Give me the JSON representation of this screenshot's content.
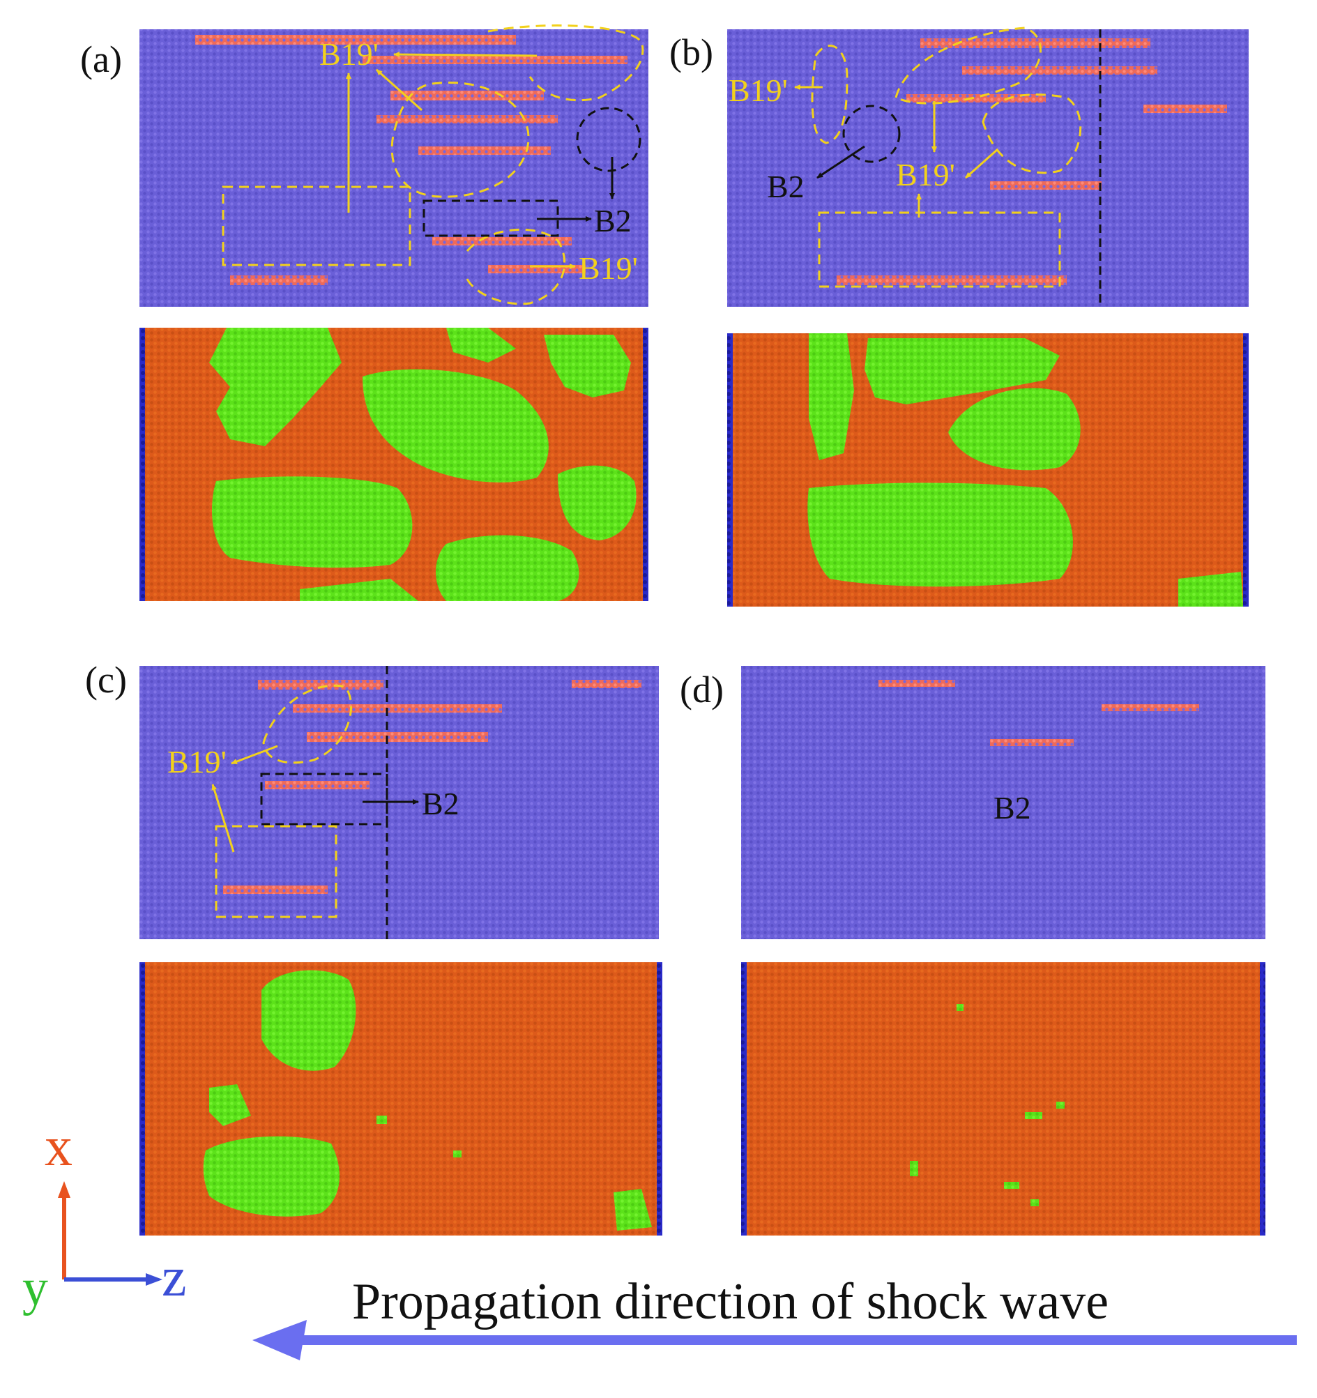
{
  "panels": [
    {
      "label": "(a)",
      "top_tags": [
        {
          "text": "B19'",
          "color": "yellow"
        },
        {
          "text": "B2",
          "color": "black"
        },
        {
          "text": "B19'",
          "color": "yellow"
        }
      ]
    },
    {
      "label": "(b)",
      "top_tags": [
        {
          "text": "B19'",
          "color": "yellow"
        },
        {
          "text": "B2",
          "color": "black"
        },
        {
          "text": "B19'",
          "color": "yellow"
        }
      ]
    },
    {
      "label": "(c)",
      "top_tags": [
        {
          "text": "B19'",
          "color": "yellow"
        },
        {
          "text": "B2",
          "color": "black"
        }
      ]
    },
    {
      "label": "(d)",
      "top_tags": [
        {
          "text": "B2",
          "color": "black"
        }
      ]
    }
  ],
  "axes": {
    "x": "x",
    "y": "y",
    "z": "z"
  },
  "caption": "Propagation direction of shock wave",
  "colors": {
    "atom_blue": "#6a5fd8",
    "atom_red": "#ee6a5a",
    "phase_orange": "#dd5a1a",
    "phase_green": "#5ce21a",
    "edge_blue": "#2222bb",
    "annot_yellow": "#f2d11c",
    "annot_black": "#111111",
    "arrow_blue": "#6a6ef0"
  }
}
